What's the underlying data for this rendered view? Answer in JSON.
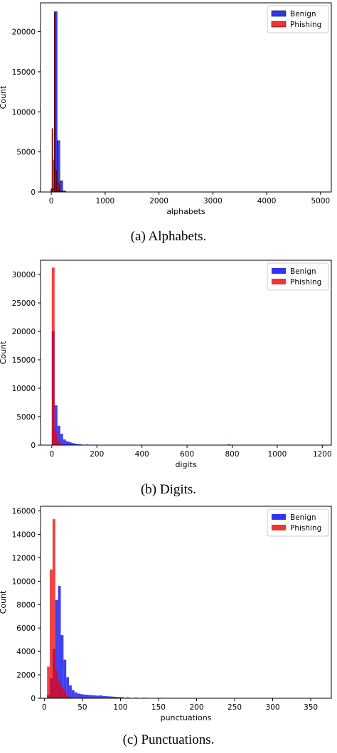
{
  "chart_data": [
    {
      "type": "histogram",
      "caption": "(a) Alphabets.",
      "xlabel": "alphabets",
      "ylabel": "Count",
      "xlim": [
        -200,
        5200
      ],
      "ylim": [
        0,
        23600
      ],
      "xticks": [
        0,
        1000,
        2000,
        3000,
        4000,
        5000
      ],
      "yticks": [
        0,
        5000,
        10000,
        15000,
        20000
      ],
      "legend_position": "top-right",
      "series": [
        {
          "name": "Benign",
          "color": "#0000ee",
          "bin_width": 52,
          "x": [
            4,
            56,
            108,
            160,
            212
          ],
          "values": [
            450,
            22500,
            6400,
            1400,
            150
          ]
        },
        {
          "name": "Phishing",
          "color": "#ee0000",
          "bin_width": 22,
          "x": [
            -10,
            12,
            34,
            56,
            78,
            100,
            122,
            144,
            166
          ],
          "values": [
            300,
            7900,
            4000,
            22300,
            2700,
            2500,
            1000,
            300,
            80
          ]
        }
      ]
    },
    {
      "type": "histogram",
      "caption": "(b) Digits.",
      "xlabel": "digits",
      "ylabel": "Count",
      "xlim": [
        -50,
        1240
      ],
      "ylim": [
        0,
        32500
      ],
      "xticks": [
        0,
        200,
        400,
        600,
        800,
        1000,
        1200
      ],
      "yticks": [
        0,
        5000,
        10000,
        15000,
        20000,
        25000,
        30000
      ],
      "legend_position": "top-right",
      "series": [
        {
          "name": "Benign",
          "color": "#0000ee",
          "bin_width": 12.5,
          "x": [
            0,
            12.5,
            25,
            37.5,
            50,
            62.5,
            75,
            87.5,
            100,
            112.5,
            125,
            150,
            175,
            200,
            250,
            300,
            400,
            500,
            600,
            700,
            780,
            900,
            1000,
            1100
          ],
          "values": [
            20000,
            7000,
            3400,
            2000,
            1000,
            700,
            500,
            350,
            250,
            180,
            130,
            100,
            80,
            60,
            50,
            40,
            30,
            25,
            20,
            15,
            150,
            15,
            10,
            10
          ]
        },
        {
          "name": "Phishing",
          "color": "#ee0000",
          "bin_width": 12.5,
          "x": [
            0,
            12.5,
            25,
            37.5,
            50
          ],
          "values": [
            31200,
            2500,
            700,
            200,
            80
          ]
        }
      ]
    },
    {
      "type": "histogram",
      "caption": "(c) Punctuations.",
      "xlabel": "punctuations",
      "ylabel": "Count",
      "xlim": [
        -5,
        377
      ],
      "ylim": [
        0,
        16400
      ],
      "xticks": [
        0,
        50,
        100,
        150,
        200,
        250,
        300,
        350
      ],
      "yticks": [
        0,
        2000,
        4000,
        6000,
        8000,
        10000,
        12000,
        14000,
        16000
      ],
      "legend_position": "top-right",
      "series": [
        {
          "name": "Benign",
          "color": "#0000ee",
          "bin_width": 3.6,
          "x": [
            3.6,
            7.2,
            10.8,
            14.4,
            18,
            21.6,
            25.2,
            28.8,
            32.4,
            36,
            39.6,
            43.2,
            46.8,
            50.4,
            54,
            57.6,
            61.2,
            64.8,
            68.4,
            72,
            75.6,
            79.2,
            82.8,
            86.4,
            90,
            93.6,
            97.2,
            100.8,
            108,
            118.8,
            129.6,
            151.2,
            187.2,
            223.2,
            266.4,
            367.2
          ],
          "values": [
            300,
            1700,
            4200,
            8400,
            9600,
            5400,
            3300,
            1800,
            1100,
            700,
            500,
            400,
            350,
            320,
            300,
            280,
            260,
            240,
            220,
            250,
            200,
            180,
            160,
            150,
            130,
            110,
            100,
            90,
            80,
            60,
            50,
            40,
            30,
            25,
            20,
            15
          ]
        },
        {
          "name": "Phishing",
          "color": "#ee0000",
          "bin_width": 3.6,
          "x": [
            3.6,
            7.2,
            10.8,
            14.4,
            18,
            21.6,
            25.2,
            28.8,
            32.4,
            36
          ],
          "values": [
            2700,
            11000,
            15300,
            2400,
            1400,
            900,
            700,
            200,
            120,
            60
          ]
        }
      ]
    }
  ]
}
